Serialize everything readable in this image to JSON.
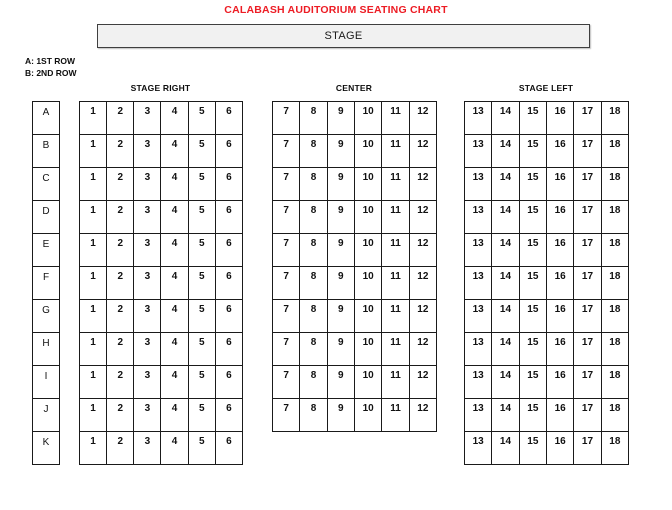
{
  "title": "CALABASH AUDITORIUM SEATING CHART",
  "stage": {
    "label": "STAGE"
  },
  "legend": {
    "line1": "A: 1ST ROW",
    "line2": "B: 2ND ROW"
  },
  "row_labels": [
    "A",
    "B",
    "C",
    "D",
    "E",
    "F",
    "G",
    "H",
    "I",
    "J",
    "K"
  ],
  "sections": [
    {
      "name": "STAGE RIGHT",
      "seat_numbers": [
        "1",
        "2",
        "3",
        "4",
        "5",
        "6"
      ],
      "row_count": 11
    },
    {
      "name": "CENTER",
      "seat_numbers": [
        "7",
        "8",
        "9",
        "10",
        "11",
        "12"
      ],
      "row_count": 10
    },
    {
      "name": "STAGE LEFT",
      "seat_numbers": [
        "13",
        "14",
        "15",
        "16",
        "17",
        "18"
      ],
      "row_count": 11
    }
  ],
  "colors": {
    "title": "#ed1c24",
    "stage_fill": "#f1f1f1",
    "border": "#1a1a1a"
  }
}
